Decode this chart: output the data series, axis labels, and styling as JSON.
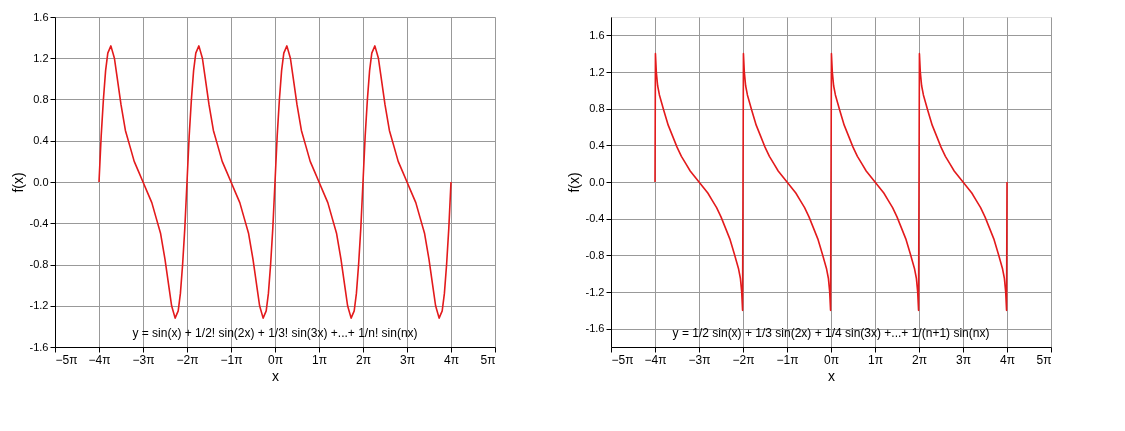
{
  "chart_data": [
    {
      "type": "line",
      "xlabel": "x",
      "ylabel": "f(x)",
      "annotations": [
        "y = sin(x) + 1/2! sin(2x) + 1/3! sin(3x) +...+ 1/n! sin(nx)"
      ],
      "grid": true,
      "line_style": "solid",
      "marker": "none",
      "xlim": [
        -15.708,
        15.708
      ],
      "xticks": [
        {
          "value": -15.708,
          "label": "−5π"
        },
        {
          "value": -12.566,
          "label": "−4π"
        },
        {
          "value": -9.425,
          "label": "−3π"
        },
        {
          "value": -6.283,
          "label": "−2π"
        },
        {
          "value": -3.142,
          "label": "−1π"
        },
        {
          "value": 0,
          "label": "0π"
        },
        {
          "value": 3.142,
          "label": "1π"
        },
        {
          "value": 6.283,
          "label": "2π"
        },
        {
          "value": 9.425,
          "label": "3π"
        },
        {
          "value": 12.566,
          "label": "4π"
        },
        {
          "value": 15.708,
          "label": "5π"
        }
      ],
      "ylim": [
        -1.6,
        1.6
      ],
      "yticks": [
        -1.6,
        -1.2,
        -0.8,
        -0.4,
        {
          "value": 0,
          "label": "0.0"
        },
        0.4,
        0.8,
        1.2,
        1.6
      ],
      "series": [
        {
          "color": "#e31a1c",
          "x": [
            -12.566,
            -12.409,
            -12.252,
            -12.095,
            -11.938,
            -11.718,
            -11.466,
            -11.309,
            -10.995,
            -10.681,
            -10.367,
            -10.053,
            -9.739,
            -9.424,
            -9.11,
            -8.796,
            -8.482,
            -8.168,
            -7.854,
            -7.539,
            -7.382,
            -7.131,
            -6.911,
            -6.754,
            -6.597,
            -6.44,
            -6.283,
            -6.126,
            -5.969,
            -5.812,
            -5.655,
            -5.435,
            -5.183,
            -5.026,
            -4.712,
            -4.398,
            -4.084,
            -3.77,
            -3.456,
            -3.141,
            -2.827,
            -2.513,
            -2.199,
            -1.885,
            -1.571,
            -1.256,
            -1.099,
            -0.848,
            -0.628,
            -0.471,
            -0.314,
            -0.157,
            0,
            0.157,
            0.314,
            0.471,
            0.628,
            0.848,
            1.1,
            1.257,
            1.571,
            1.885,
            2.199,
            2.513,
            2.827,
            3.142,
            3.456,
            3.77,
            4.084,
            4.398,
            4.712,
            5.027,
            5.184,
            5.435,
            5.655,
            5.812,
            5.969,
            6.126,
            6.283,
            6.44,
            6.597,
            6.754,
            6.911,
            7.131,
            7.383,
            7.54,
            7.854,
            8.168,
            8.482,
            8.796,
            9.11,
            9.425,
            9.739,
            10.053,
            10.367,
            10.681,
            10.995,
            11.31,
            11.467,
            11.718,
            11.938,
            12.095,
            12.252,
            12.409,
            12.566
          ],
          "values": [
            0,
            0.45,
            0.8,
            1.08,
            1.25,
            1.32,
            1.2,
            1.05,
            0.75,
            0.5,
            0.35,
            0.2,
            0.1,
            0,
            -0.1,
            -0.2,
            -0.35,
            -0.5,
            -0.75,
            -1.05,
            -1.2,
            -1.32,
            -1.25,
            -1.08,
            -0.8,
            -0.45,
            0,
            0.45,
            0.8,
            1.08,
            1.25,
            1.32,
            1.2,
            1.05,
            0.75,
            0.5,
            0.35,
            0.2,
            0.1,
            0,
            -0.1,
            -0.2,
            -0.35,
            -0.5,
            -0.75,
            -1.05,
            -1.2,
            -1.32,
            -1.25,
            -1.08,
            -0.8,
            -0.45,
            0,
            0.45,
            0.8,
            1.08,
            1.25,
            1.32,
            1.2,
            1.05,
            0.75,
            0.5,
            0.35,
            0.2,
            0.1,
            0,
            -0.1,
            -0.2,
            -0.35,
            -0.5,
            -0.75,
            -1.05,
            -1.2,
            -1.32,
            -1.25,
            -1.08,
            -0.8,
            -0.45,
            0,
            0.45,
            0.8,
            1.08,
            1.25,
            1.32,
            1.2,
            1.05,
            0.75,
            0.5,
            0.35,
            0.2,
            0.1,
            0,
            -0.1,
            -0.2,
            -0.35,
            -0.5,
            -0.75,
            -1.05,
            -1.2,
            -1.32,
            -1.25,
            -1.08,
            -0.8,
            -0.45,
            0
          ]
        }
      ]
    },
    {
      "type": "line",
      "xlabel": "x",
      "ylabel": "f(x)",
      "annotations": [
        "y = 1/2 sin(x) + 1/3 sin(2x) + 1/4 sin(3x) +...+ 1/(n+1) sin(nx)"
      ],
      "grid": true,
      "line_style": "solid",
      "marker": "none",
      "xlim": [
        -15.708,
        15.708
      ],
      "xticks": [
        {
          "value": -15.708,
          "label": "−5π"
        },
        {
          "value": -12.566,
          "label": "−4π"
        },
        {
          "value": -9.425,
          "label": "−3π"
        },
        {
          "value": -6.283,
          "label": "−2π"
        },
        {
          "value": -3.142,
          "label": "−1π"
        },
        {
          "value": 0,
          "label": "0π"
        },
        {
          "value": 3.142,
          "label": "1π"
        },
        {
          "value": 6.283,
          "label": "2π"
        },
        {
          "value": 9.425,
          "label": "3π"
        },
        {
          "value": 12.566,
          "label": "4π"
        },
        {
          "value": 15.708,
          "label": "5π"
        }
      ],
      "ylim": [
        -1.8,
        1.8
      ],
      "yticks": [
        -1.6,
        -1.2,
        -0.8,
        -0.4,
        {
          "value": 0,
          "label": "0.0"
        },
        0.4,
        0.8,
        1.2,
        1.6
      ],
      "series": [
        {
          "color": "#e31a1c",
          "x": [
            -12.566,
            -12.535,
            -12.472,
            -12.378,
            -12.252,
            -11.938,
            -11.624,
            -11.309,
            -10.995,
            -10.681,
            -10.367,
            -10.053,
            -9.739,
            -9.424,
            -9.11,
            -8.796,
            -8.482,
            -8.168,
            -7.854,
            -7.539,
            -7.225,
            -6.911,
            -6.597,
            -6.471,
            -6.377,
            -6.314,
            -6.252,
            -6.189,
            -6.095,
            -5.969,
            -5.655,
            -5.341,
            -5.026,
            -4.712,
            -4.398,
            -4.084,
            -3.77,
            -3.456,
            -3.141,
            -2.827,
            -2.513,
            -2.199,
            -1.885,
            -1.571,
            -1.256,
            -0.942,
            -0.628,
            -0.314,
            -0.188,
            -0.094,
            -0.031,
            0.031,
            0.094,
            0.188,
            0.314,
            0.628,
            0.942,
            1.257,
            1.571,
            1.885,
            2.199,
            2.513,
            2.827,
            3.142,
            3.456,
            3.77,
            4.084,
            4.398,
            4.712,
            5.027,
            5.341,
            5.655,
            5.969,
            6.095,
            6.189,
            6.252,
            6.314,
            6.377,
            6.471,
            6.597,
            6.911,
            7.225,
            7.54,
            7.854,
            8.168,
            8.482,
            8.796,
            9.11,
            9.425,
            9.739,
            10.053,
            10.367,
            10.681,
            10.995,
            11.31,
            11.624,
            11.938,
            12.252,
            12.378,
            12.472,
            12.535,
            12.566
          ],
          "values": [
            0,
            1.4,
            1.2,
            1.05,
            0.95,
            0.78,
            0.62,
            0.5,
            0.38,
            0.28,
            0.2,
            0.12,
            0.06,
            0,
            -0.06,
            -0.12,
            -0.2,
            -0.28,
            -0.38,
            -0.5,
            -0.62,
            -0.78,
            -0.95,
            -1.05,
            -1.2,
            -1.4,
            1.4,
            1.2,
            1.05,
            0.95,
            0.78,
            0.62,
            0.5,
            0.38,
            0.28,
            0.2,
            0.12,
            0.06,
            0,
            -0.06,
            -0.12,
            -0.2,
            -0.28,
            -0.38,
            -0.5,
            -0.62,
            -0.78,
            -0.95,
            -1.05,
            -1.2,
            -1.4,
            1.4,
            1.2,
            1.05,
            0.95,
            0.78,
            0.62,
            0.5,
            0.38,
            0.28,
            0.2,
            0.12,
            0.06,
            0,
            -0.06,
            -0.12,
            -0.2,
            -0.28,
            -0.38,
            -0.5,
            -0.62,
            -0.78,
            -0.95,
            -1.05,
            -1.2,
            -1.4,
            1.4,
            1.2,
            1.05,
            0.95,
            0.78,
            0.62,
            0.5,
            0.38,
            0.28,
            0.2,
            0.12,
            0.06,
            0,
            -0.06,
            -0.12,
            -0.2,
            -0.28,
            -0.38,
            -0.5,
            -0.62,
            -0.78,
            -0.95,
            -1.05,
            -1.2,
            -1.4,
            0
          ]
        }
      ]
    }
  ]
}
